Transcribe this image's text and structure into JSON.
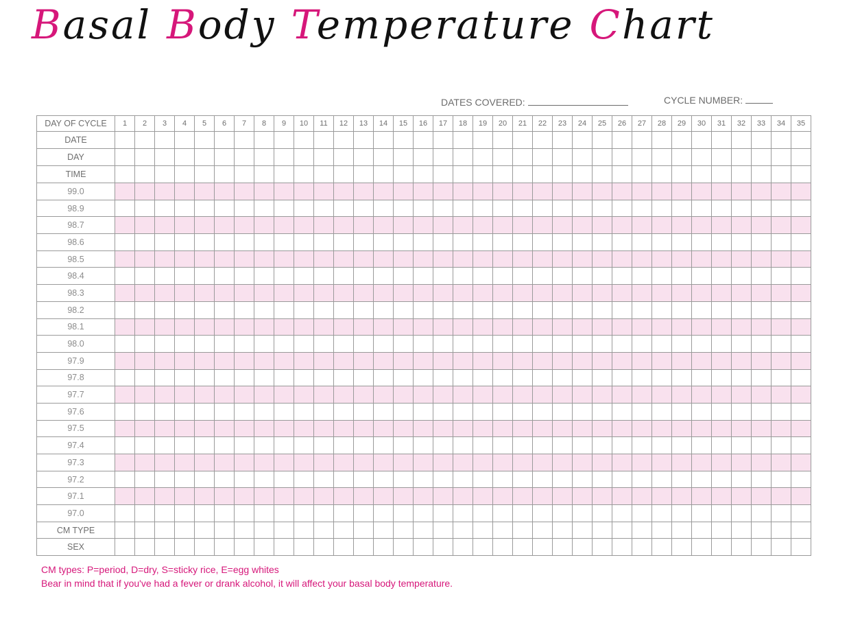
{
  "title": {
    "words": [
      {
        "initial": "B",
        "rest": "asal"
      },
      {
        "initial": "B",
        "rest": "ody"
      },
      {
        "initial": "T",
        "rest": "emperature"
      },
      {
        "initial": "C",
        "rest": "hart"
      }
    ]
  },
  "header": {
    "dates_covered_label": "DATES COVERED:",
    "cycle_number_label": "CYCLE NUMBER:"
  },
  "grid": {
    "corner_label": "DAY OF CYCLE",
    "days": [
      "1",
      "2",
      "3",
      "4",
      "5",
      "6",
      "7",
      "8",
      "9",
      "10",
      "11",
      "12",
      "13",
      "14",
      "15",
      "16",
      "17",
      "18",
      "19",
      "20",
      "21",
      "22",
      "23",
      "24",
      "25",
      "26",
      "27",
      "28",
      "29",
      "30",
      "31",
      "32",
      "33",
      "34",
      "35"
    ],
    "info_rows": [
      "DATE",
      "DAY",
      "TIME"
    ],
    "temperatures": [
      "99.0",
      "98.9",
      "98.7",
      "98.6",
      "98.5",
      "98.4",
      "98.3",
      "98.2",
      "98.1",
      "98.0",
      "97.9",
      "97.8",
      "97.7",
      "97.6",
      "97.5",
      "97.4",
      "97.3",
      "97.2",
      "97.1",
      "97.0"
    ],
    "footer_rows": [
      "CM TYPE",
      "SEX"
    ]
  },
  "notes": {
    "cm_types": "CM types: P=period, D=dry, S=sticky rice, E=egg whites",
    "reminder": "Bear in mind that if you've had a fever or drank alcohol, it will affect your basal body temperature."
  },
  "colors": {
    "accent": "#d6177a",
    "stripe": "#f9e1ee",
    "grid_line": "#9a9a9a"
  }
}
